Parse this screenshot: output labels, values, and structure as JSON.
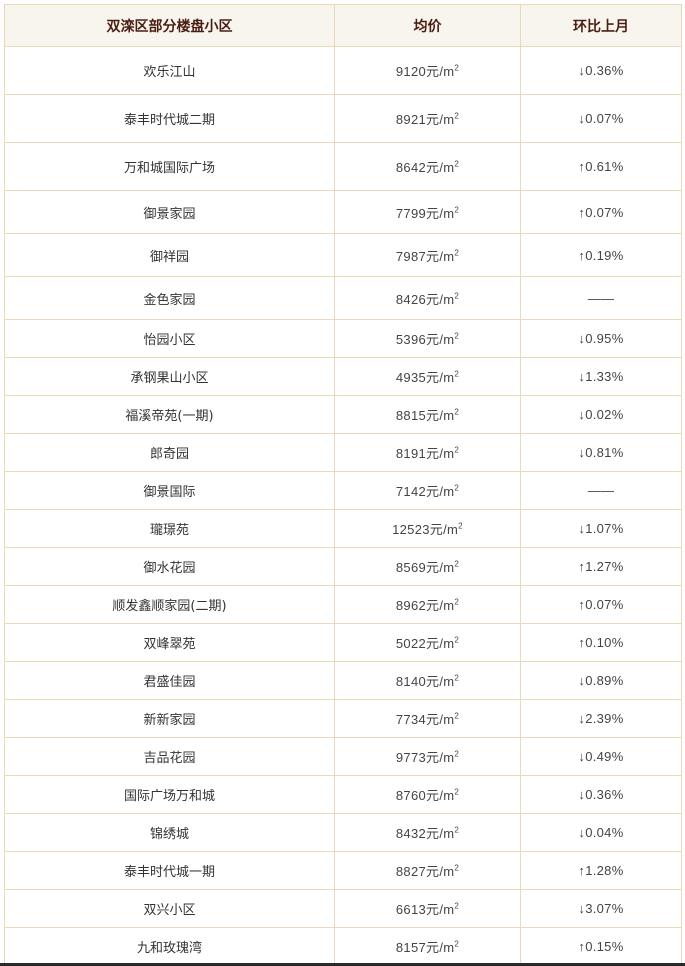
{
  "table": {
    "headers": [
      "双滦区部分楼盘小区",
      "均价",
      "环比上月"
    ],
    "unit": "元/m",
    "unit_sup": "2",
    "rows": [
      {
        "name": "欢乐江山",
        "price": "9120",
        "change": "↓0.36%"
      },
      {
        "name": "泰丰时代城二期",
        "price": "8921",
        "change": "↓0.07%"
      },
      {
        "name": "万和城国际广场",
        "price": "8642",
        "change": "↑0.61%"
      },
      {
        "name": "御景家园",
        "price": "7799",
        "change": "↑0.07%"
      },
      {
        "name": "御祥园",
        "price": "7987",
        "change": "↑0.19%"
      },
      {
        "name": "金色家园",
        "price": "8426",
        "change": "——"
      },
      {
        "name": "怡园小区",
        "price": "5396",
        "change": "↓0.95%"
      },
      {
        "name": "承钢果山小区",
        "price": "4935",
        "change": "↓1.33%"
      },
      {
        "name": "福溪帝苑(一期)",
        "price": "8815",
        "change": "↓0.02%"
      },
      {
        "name": "郎奇园",
        "price": "8191",
        "change": "↓0.81%"
      },
      {
        "name": "御景国际",
        "price": "7142",
        "change": "——"
      },
      {
        "name": "瓏璟苑",
        "price": "12523",
        "change": "↓1.07%"
      },
      {
        "name": "御水花园",
        "price": "8569",
        "change": "↑1.27%"
      },
      {
        "name": "顺发鑫顺家园(二期)",
        "price": "8962",
        "change": "↑0.07%"
      },
      {
        "name": "双峰翠苑",
        "price": "5022",
        "change": "↑0.10%"
      },
      {
        "name": "君盛佳园",
        "price": "8140",
        "change": "↓0.89%"
      },
      {
        "name": "新新家园",
        "price": "7734",
        "change": "↓2.39%"
      },
      {
        "name": "吉品花园",
        "price": "9773",
        "change": "↓0.49%"
      },
      {
        "name": "国际广场万和城",
        "price": "8760",
        "change": "↓0.36%"
      },
      {
        "name": "锦绣城",
        "price": "8432",
        "change": "↓0.04%"
      },
      {
        "name": "泰丰时代城一期",
        "price": "8827",
        "change": "↑1.28%"
      },
      {
        "name": "双兴小区",
        "price": "6613",
        "change": "↓3.07%"
      },
      {
        "name": "九和玫瑰湾",
        "price": "8157",
        "change": "↑0.15%"
      }
    ]
  },
  "colors": {
    "header_bg": "#f8f4ee",
    "header_text": "#4a1e12",
    "border": "#ead9b8"
  }
}
